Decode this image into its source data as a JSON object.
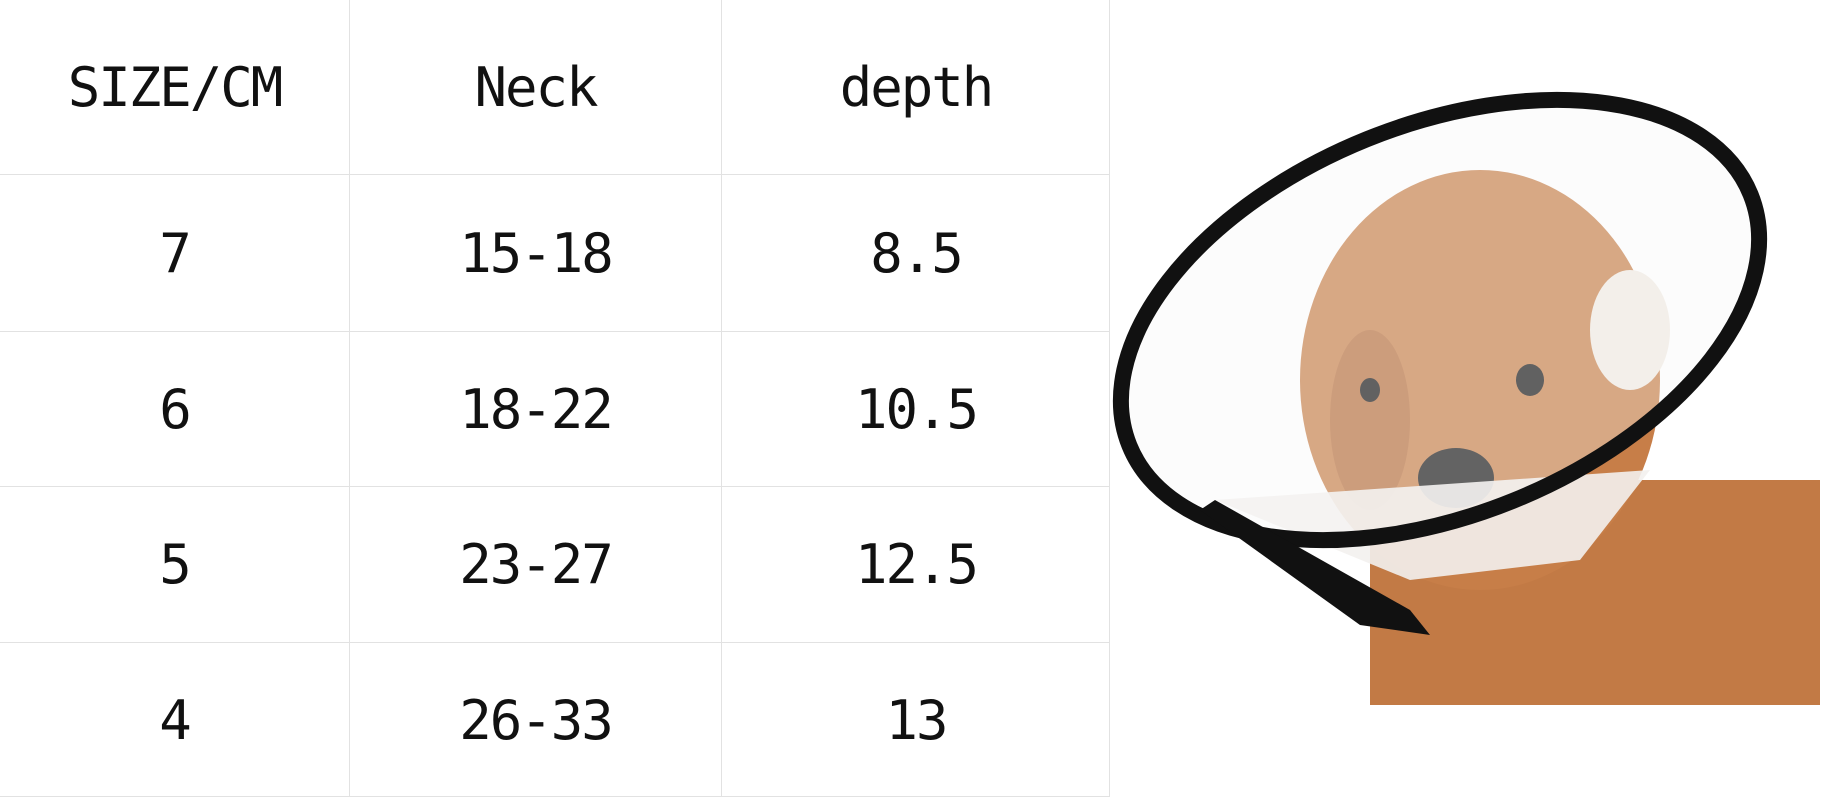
{
  "table": {
    "headers": [
      "SIZE/CM",
      "Neck",
      "depth"
    ],
    "rows": [
      [
        "7",
        "15-18",
        "8.5"
      ],
      [
        "6",
        "18-22",
        "10.5"
      ],
      [
        "5",
        "23-27",
        "12.5"
      ],
      [
        "4",
        "26-33",
        "13"
      ]
    ]
  },
  "photo": {
    "subject": "dog-with-cone-collar",
    "fur_color": "#c27a45",
    "cone_rim_color": "#111111"
  }
}
